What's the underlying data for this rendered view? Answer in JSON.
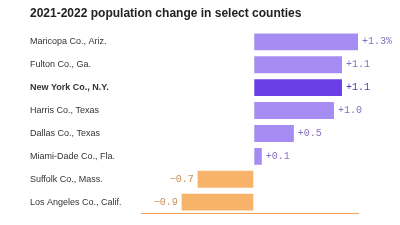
{
  "chart_data": {
    "type": "bar",
    "orientation": "horizontal",
    "title": "2021-2022 population change in select counties",
    "categories": [
      "Maricopa Co., Ariz.",
      "Fulton Co., Ga.",
      "New York Co., N.Y.",
      "Harris Co., Texas",
      "Dallas Co., Texas",
      "Miami-Dade Co., Fla.",
      "Suffolk Co., Mass.",
      "Los Angeles Co., Calif."
    ],
    "values": [
      1.3,
      1.1,
      1.1,
      1.0,
      0.5,
      0.1,
      -0.7,
      -0.9
    ],
    "value_labels": [
      "+1.3%",
      "+1.1",
      "+1.1",
      "+1.0",
      "+0.5",
      "+0.1",
      "−0.7",
      "−0.9"
    ],
    "colors": [
      "#a68cf2",
      "#a68cf2",
      "#6b3fe6",
      "#a68cf2",
      "#a68cf2",
      "#a68cf2",
      "#f8b36b",
      "#f8b36b"
    ],
    "xlim": [
      -1.4,
      1.3
    ],
    "grid": false,
    "data_labels": true,
    "tick_labels": "y"
  }
}
